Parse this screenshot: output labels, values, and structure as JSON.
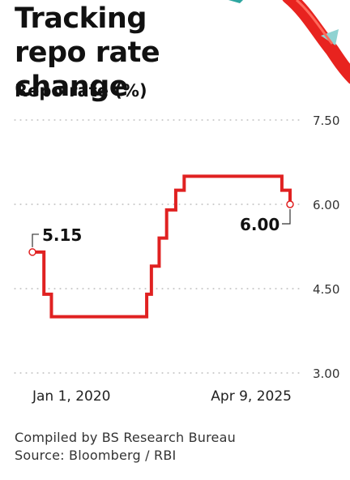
{
  "header": {
    "title": "Tracking repo rate change",
    "subtitle": "Repo rate (%)"
  },
  "footer": {
    "credit": "Compiled by BS Research Bureau",
    "source": "Source: Bloomberg / RBI"
  },
  "colors": {
    "line": "#e02121",
    "grid": "#9a9a9a",
    "text": "#111111",
    "decoration": "#e8231f"
  },
  "chart_data": {
    "type": "line",
    "title": "Repo rate (%)",
    "ylim": [
      3.0,
      7.5
    ],
    "yticks": [
      "7.50",
      "6.00",
      "4.50",
      "3.00"
    ],
    "x_labels": [
      "Jan 1, 2020",
      "Apr 9, 2025"
    ],
    "grid": true,
    "series": [
      {
        "x": [
          "2020-01-01",
          "2020-03-27",
          "2020-05-22",
          "2022-05-04",
          "2022-06-08",
          "2022-08-05",
          "2022-09-30",
          "2022-12-07",
          "2023-02-08",
          "2024-12-31",
          "2025-02-07",
          "2025-04-09"
        ],
        "values": [
          5.15,
          4.4,
          4.0,
          4.4,
          4.9,
          5.4,
          5.9,
          6.25,
          6.5,
          6.5,
          6.25,
          6.0
        ]
      }
    ],
    "annotations": [
      {
        "label": "5.15",
        "x": "2020-01-01",
        "y": 5.15
      },
      {
        "label": "6.00",
        "x": "2025-04-09",
        "y": 6.0
      }
    ]
  }
}
